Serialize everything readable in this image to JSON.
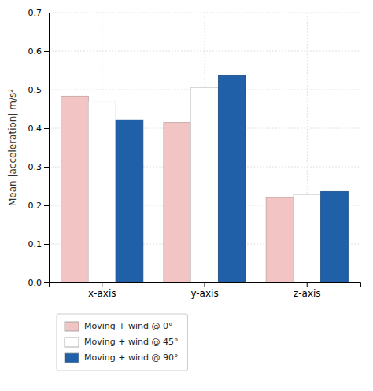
{
  "chart_data": {
    "type": "bar",
    "categories": [
      "x-axis",
      "y-axis",
      "z-axis"
    ],
    "series": [
      {
        "name": "Moving + wind @ 0°",
        "color": "#f2c4c4",
        "values": [
          0.483,
          0.415,
          0.22
        ]
      },
      {
        "name": "Moving + wind @ 45°",
        "color": "#ffffff",
        "values": [
          0.47,
          0.505,
          0.228
        ]
      },
      {
        "name": "Moving + wind @ 90°",
        "color": "#2060a8",
        "values": [
          0.422,
          0.538,
          0.236
        ]
      }
    ],
    "y_label": "Mean |acceleration| m/s²",
    "ylim": [
      0,
      0.7
    ],
    "yticks": [
      {
        "value": 0,
        "label": "0.0"
      },
      0.1,
      0.2,
      0.3,
      0.4,
      0.5,
      0.6,
      0.7
    ],
    "grid": true,
    "legend": "bottom"
  }
}
